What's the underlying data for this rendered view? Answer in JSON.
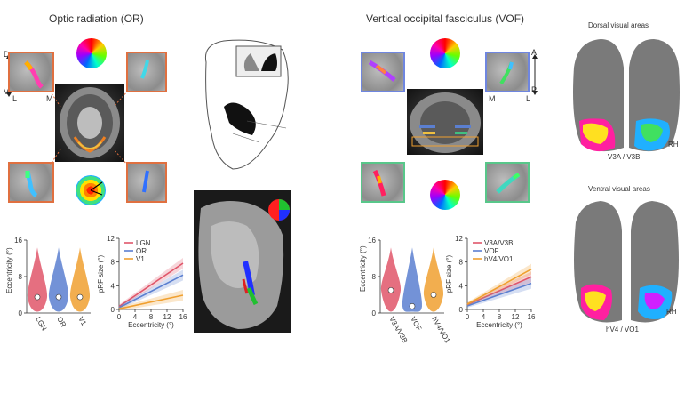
{
  "panels": {
    "or_title": "Optic radiation (OR)",
    "vof_title": "Vertical occipital fasciculus (VOF)",
    "dorsal_title": "Dorsal visual areas",
    "ventral_title": "Ventral visual areas",
    "rh_label": "RH",
    "dorsal_areas_label": "V3A / V3B",
    "ventral_areas_label": "hV4 / VO1",
    "orient_or": {
      "top": "D",
      "bottom": "V",
      "left": "L",
      "right": "M"
    },
    "orient_vof": {
      "top": "A",
      "bottom": "P",
      "left": "M",
      "right": "L"
    }
  },
  "colors": {
    "lgn": "#e0566a",
    "or": "#5b7fd0",
    "v1": "#f0a030",
    "v3ab": "#e0566a",
    "vof": "#5b7fd0",
    "hv4vo1": "#f0a030"
  },
  "chart_data": [
    {
      "type": "violin",
      "title": "",
      "ylabel": "Eccentricity (°)",
      "ylim": [
        0,
        16
      ],
      "yticks": [
        0,
        8,
        16
      ],
      "categories": [
        "LGN",
        "OR",
        "V1"
      ],
      "medians": [
        3.5,
        3.5,
        3.5
      ]
    },
    {
      "type": "line",
      "title": "",
      "xlabel": "Eccentricity (°)",
      "ylabel": "pRF size (°)",
      "xlim": [
        0,
        16
      ],
      "ylim": [
        0,
        12
      ],
      "xticks": [
        0,
        4,
        8,
        12,
        16
      ],
      "yticks": [
        0,
        4,
        8,
        12
      ],
      "x": [
        0,
        16
      ],
      "series": [
        {
          "name": "LGN",
          "values": [
            0.5,
            7.8
          ]
        },
        {
          "name": "OR",
          "values": [
            0.3,
            5.8
          ]
        },
        {
          "name": "V1",
          "values": [
            0.1,
            2.4
          ]
        }
      ]
    },
    {
      "type": "violin",
      "title": "",
      "ylabel": "Eccentricity (°)",
      "ylim": [
        0,
        16
      ],
      "yticks": [
        0,
        8,
        16
      ],
      "categories": [
        "V3A/V3B",
        "VOF",
        "hV4/VO1"
      ],
      "medians": [
        5,
        1.5,
        4
      ]
    },
    {
      "type": "line",
      "title": "",
      "xlabel": "Eccentricity (°)",
      "ylabel": "pRF size (°)",
      "xlim": [
        0,
        16
      ],
      "ylim": [
        0,
        12
      ],
      "xticks": [
        0,
        4,
        8,
        12,
        16
      ],
      "yticks": [
        0,
        4,
        8,
        12
      ],
      "x": [
        0,
        16
      ],
      "series": [
        {
          "name": "V3A/V3B",
          "values": [
            0.8,
            5.5
          ]
        },
        {
          "name": "VOF",
          "values": [
            0.6,
            4.4
          ]
        },
        {
          "name": "hV4/VO1",
          "values": [
            0.9,
            6.8
          ]
        }
      ]
    }
  ]
}
